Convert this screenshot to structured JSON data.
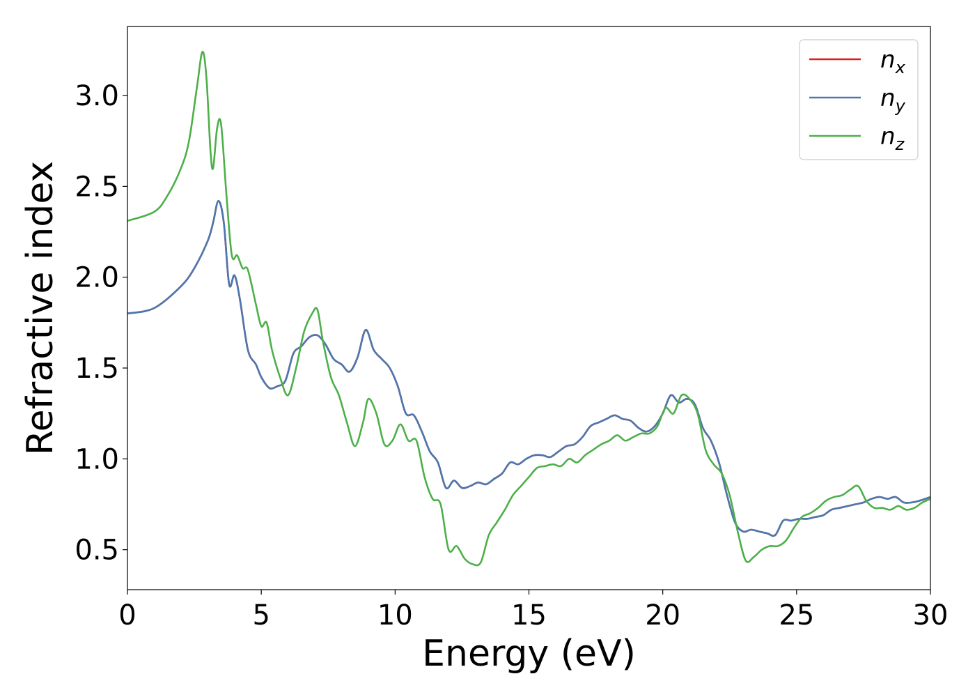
{
  "chart_data": {
    "type": "line",
    "title": "",
    "xlabel": "Energy (eV)",
    "ylabel": "Refractive index",
    "xlim": [
      0,
      30
    ],
    "ylim": [
      0.28,
      3.38
    ],
    "xticks": [
      0,
      5,
      10,
      15,
      20,
      25,
      30
    ],
    "yticks": [
      0.5,
      1.0,
      1.5,
      2.0,
      2.5,
      3.0
    ],
    "xtick_labels": [
      "0",
      "5",
      "10",
      "15",
      "20",
      "25",
      "30"
    ],
    "ytick_labels": [
      "0.5",
      "1.0",
      "1.5",
      "2.0",
      "2.5",
      "3.0"
    ],
    "grid": false,
    "legend_position": "top-right",
    "series": [
      {
        "name": "n_x",
        "label_base": "n",
        "label_sub": "x",
        "color": "#e41a1c",
        "x": [
          0,
          1,
          2,
          2.5,
          3,
          3.2,
          3.4,
          3.6,
          3.8,
          4.0,
          4.2,
          4.5,
          4.8,
          5.0,
          5.3,
          5.6,
          5.9,
          6.2,
          6.5,
          6.8,
          7.1,
          7.4,
          7.7,
          8.0,
          8.3,
          8.6,
          8.9,
          9.2,
          9.5,
          9.8,
          10.1,
          10.4,
          10.7,
          11.0,
          11.3,
          11.6,
          11.9,
          12.2,
          12.5,
          12.8,
          13.1,
          13.4,
          13.7,
          14.0,
          14.3,
          14.6,
          14.9,
          15.2,
          15.5,
          15.8,
          16.1,
          16.4,
          16.7,
          17.0,
          17.3,
          17.6,
          17.9,
          18.2,
          18.5,
          18.8,
          19.1,
          19.4,
          19.7,
          20.0,
          20.3,
          20.6,
          20.9,
          21.2,
          21.5,
          21.8,
          22.1,
          22.4,
          22.7,
          23.0,
          23.3,
          23.6,
          23.9,
          24.2,
          24.5,
          24.8,
          25.1,
          25.4,
          25.7,
          26.0,
          26.3,
          26.6,
          26.9,
          27.2,
          27.5,
          27.8,
          28.1,
          28.4,
          28.7,
          29.0,
          29.3,
          29.6,
          30.0
        ],
        "y": [
          1.8,
          1.83,
          1.95,
          2.05,
          2.2,
          2.3,
          2.42,
          2.3,
          1.96,
          2.01,
          1.88,
          1.6,
          1.52,
          1.45,
          1.39,
          1.4,
          1.43,
          1.58,
          1.62,
          1.67,
          1.68,
          1.63,
          1.55,
          1.52,
          1.48,
          1.56,
          1.71,
          1.6,
          1.55,
          1.5,
          1.4,
          1.25,
          1.24,
          1.15,
          1.04,
          0.98,
          0.84,
          0.88,
          0.84,
          0.85,
          0.87,
          0.86,
          0.89,
          0.92,
          0.98,
          0.97,
          1.0,
          1.02,
          1.02,
          1.01,
          1.04,
          1.07,
          1.08,
          1.12,
          1.18,
          1.2,
          1.22,
          1.24,
          1.22,
          1.21,
          1.17,
          1.15,
          1.18,
          1.25,
          1.35,
          1.31,
          1.33,
          1.3,
          1.17,
          1.1,
          0.98,
          0.8,
          0.65,
          0.6,
          0.61,
          0.6,
          0.59,
          0.58,
          0.66,
          0.66,
          0.67,
          0.67,
          0.68,
          0.69,
          0.72,
          0.73,
          0.74,
          0.75,
          0.76,
          0.78,
          0.79,
          0.78,
          0.79,
          0.76,
          0.76,
          0.77,
          0.79
        ]
      },
      {
        "name": "n_y",
        "label_base": "n",
        "label_sub": "y",
        "color": "#4a78b0",
        "x": [
          0,
          1,
          2,
          2.5,
          3,
          3.2,
          3.4,
          3.6,
          3.8,
          4.0,
          4.2,
          4.5,
          4.8,
          5.0,
          5.3,
          5.6,
          5.9,
          6.2,
          6.5,
          6.8,
          7.1,
          7.4,
          7.7,
          8.0,
          8.3,
          8.6,
          8.9,
          9.2,
          9.5,
          9.8,
          10.1,
          10.4,
          10.7,
          11.0,
          11.3,
          11.6,
          11.9,
          12.2,
          12.5,
          12.8,
          13.1,
          13.4,
          13.7,
          14.0,
          14.3,
          14.6,
          14.9,
          15.2,
          15.5,
          15.8,
          16.1,
          16.4,
          16.7,
          17.0,
          17.3,
          17.6,
          17.9,
          18.2,
          18.5,
          18.8,
          19.1,
          19.4,
          19.7,
          20.0,
          20.3,
          20.6,
          20.9,
          21.2,
          21.5,
          21.8,
          22.1,
          22.4,
          22.7,
          23.0,
          23.3,
          23.6,
          23.9,
          24.2,
          24.5,
          24.8,
          25.1,
          25.4,
          25.7,
          26.0,
          26.3,
          26.6,
          26.9,
          27.2,
          27.5,
          27.8,
          28.1,
          28.4,
          28.7,
          29.0,
          29.3,
          29.6,
          30.0
        ],
        "y": [
          1.8,
          1.83,
          1.95,
          2.05,
          2.2,
          2.3,
          2.42,
          2.3,
          1.96,
          2.01,
          1.88,
          1.6,
          1.52,
          1.45,
          1.39,
          1.4,
          1.43,
          1.58,
          1.62,
          1.67,
          1.68,
          1.63,
          1.55,
          1.52,
          1.48,
          1.56,
          1.71,
          1.6,
          1.55,
          1.5,
          1.4,
          1.25,
          1.24,
          1.15,
          1.04,
          0.98,
          0.84,
          0.88,
          0.84,
          0.85,
          0.87,
          0.86,
          0.89,
          0.92,
          0.98,
          0.97,
          1.0,
          1.02,
          1.02,
          1.01,
          1.04,
          1.07,
          1.08,
          1.12,
          1.18,
          1.2,
          1.22,
          1.24,
          1.22,
          1.21,
          1.17,
          1.15,
          1.18,
          1.25,
          1.35,
          1.31,
          1.33,
          1.3,
          1.17,
          1.1,
          0.98,
          0.8,
          0.65,
          0.6,
          0.61,
          0.6,
          0.59,
          0.58,
          0.66,
          0.66,
          0.67,
          0.67,
          0.68,
          0.69,
          0.72,
          0.73,
          0.74,
          0.75,
          0.76,
          0.78,
          0.79,
          0.78,
          0.79,
          0.76,
          0.76,
          0.77,
          0.79
        ]
      },
      {
        "name": "n_z",
        "label_base": "n",
        "label_sub": "z",
        "color": "#4daf4a",
        "x": [
          0,
          1,
          1.5,
          2,
          2.3,
          2.6,
          2.8,
          2.95,
          3.1,
          3.2,
          3.35,
          3.5,
          3.7,
          3.9,
          4.1,
          4.3,
          4.5,
          4.8,
          5.0,
          5.2,
          5.4,
          5.7,
          6.0,
          6.3,
          6.6,
          6.9,
          7.1,
          7.3,
          7.6,
          7.9,
          8.2,
          8.5,
          8.8,
          9.0,
          9.3,
          9.6,
          9.9,
          10.2,
          10.5,
          10.8,
          11.1,
          11.4,
          11.7,
          12.0,
          12.3,
          12.6,
          12.9,
          13.2,
          13.5,
          13.8,
          14.1,
          14.4,
          14.7,
          15.0,
          15.3,
          15.6,
          15.9,
          16.2,
          16.5,
          16.8,
          17.1,
          17.4,
          17.7,
          18.0,
          18.3,
          18.6,
          18.9,
          19.2,
          19.5,
          19.8,
          20.1,
          20.4,
          20.7,
          21.0,
          21.3,
          21.6,
          21.9,
          22.2,
          22.5,
          22.8,
          23.1,
          23.4,
          23.7,
          24.0,
          24.3,
          24.6,
          24.9,
          25.2,
          25.5,
          25.8,
          26.1,
          26.4,
          26.7,
          27.0,
          27.3,
          27.6,
          27.9,
          28.2,
          28.5,
          28.8,
          29.1,
          29.4,
          29.7,
          30.0
        ],
        "y": [
          2.31,
          2.36,
          2.45,
          2.6,
          2.75,
          3.05,
          3.24,
          3.1,
          2.7,
          2.6,
          2.82,
          2.84,
          2.45,
          2.12,
          2.12,
          2.05,
          2.04,
          1.85,
          1.73,
          1.75,
          1.6,
          1.45,
          1.35,
          1.5,
          1.7,
          1.8,
          1.82,
          1.65,
          1.45,
          1.35,
          1.2,
          1.07,
          1.2,
          1.33,
          1.25,
          1.08,
          1.1,
          1.19,
          1.1,
          1.1,
          0.9,
          0.78,
          0.75,
          0.5,
          0.52,
          0.45,
          0.42,
          0.43,
          0.58,
          0.65,
          0.72,
          0.8,
          0.85,
          0.9,
          0.95,
          0.96,
          0.97,
          0.96,
          1.0,
          0.98,
          1.02,
          1.05,
          1.08,
          1.1,
          1.13,
          1.1,
          1.12,
          1.14,
          1.14,
          1.18,
          1.28,
          1.25,
          1.35,
          1.33,
          1.25,
          1.05,
          0.97,
          0.92,
          0.8,
          0.6,
          0.44,
          0.46,
          0.5,
          0.52,
          0.52,
          0.55,
          0.62,
          0.68,
          0.7,
          0.73,
          0.77,
          0.79,
          0.8,
          0.83,
          0.85,
          0.77,
          0.73,
          0.73,
          0.72,
          0.74,
          0.72,
          0.73,
          0.76,
          0.78
        ]
      }
    ]
  }
}
